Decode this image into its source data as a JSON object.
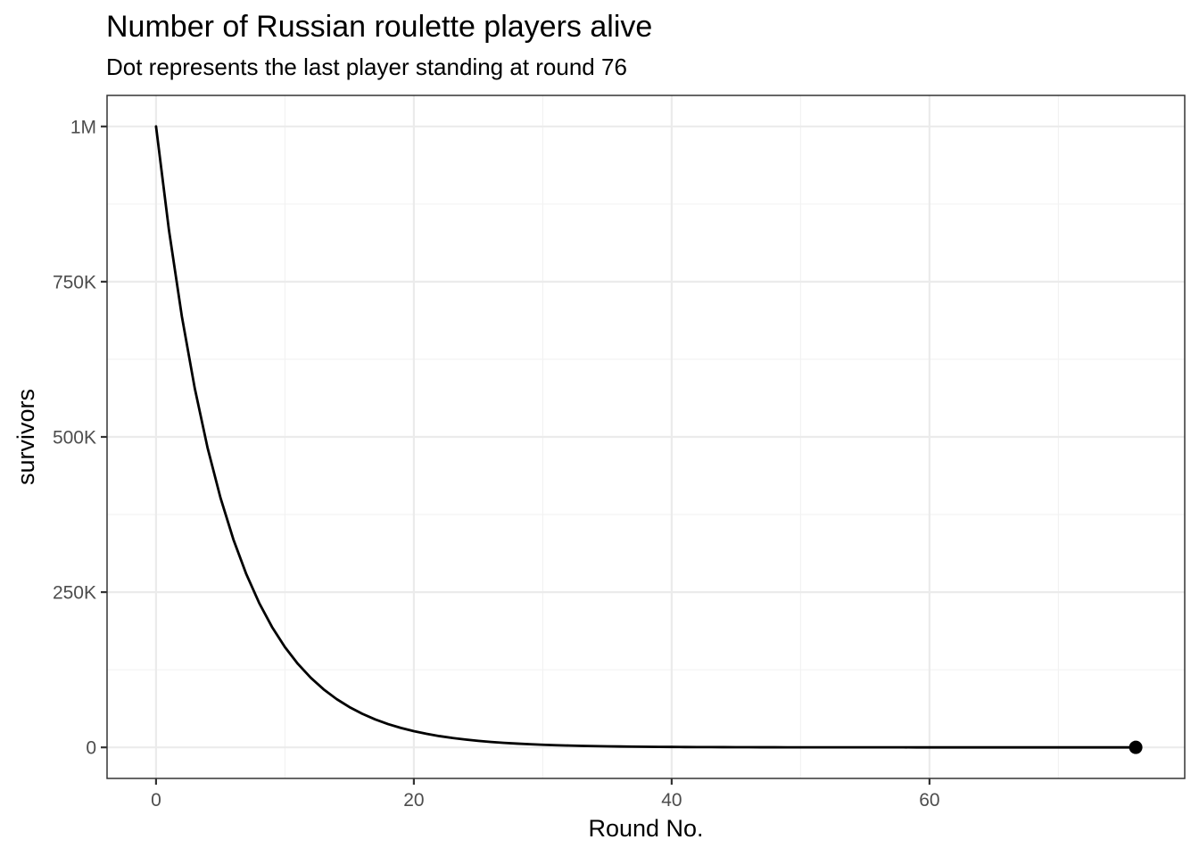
{
  "chart_data": {
    "type": "line",
    "title": "Number of Russian roulette players alive",
    "subtitle": "Dot represents the last player standing at round 76",
    "xlabel": "Round No.",
    "ylabel": "survivors",
    "xlim": [
      -3.8,
      79.8
    ],
    "ylim": [
      -50000,
      1050000
    ],
    "x_ticks": [
      0,
      20,
      40,
      60
    ],
    "x_tick_labels": [
      "0",
      "20",
      "40",
      "60"
    ],
    "x_minor_ticks": [
      10,
      30,
      50,
      70
    ],
    "y_ticks": [
      0,
      250000,
      500000,
      750000,
      1000000
    ],
    "y_tick_labels": [
      "0",
      "250K",
      "500K",
      "750K",
      "1M"
    ],
    "y_minor_ticks": [
      125000,
      375000,
      625000,
      875000
    ],
    "grid": true,
    "legend": "none",
    "series": [
      {
        "x": [
          0,
          1,
          2,
          3,
          4,
          5,
          6,
          7,
          8,
          9,
          10,
          11,
          12,
          13,
          14,
          15,
          16,
          17,
          18,
          19,
          20,
          21,
          22,
          23,
          24,
          25,
          26,
          27,
          28,
          29,
          30,
          31,
          32,
          33,
          34,
          35,
          36,
          37,
          38,
          39,
          40,
          41,
          42,
          43,
          44,
          45,
          46,
          47,
          48,
          49,
          50,
          51,
          52,
          53,
          54,
          55,
          56,
          57,
          58,
          59,
          60,
          61,
          62,
          63,
          64,
          65,
          66,
          67,
          68,
          69,
          70,
          71,
          72,
          73,
          74,
          75,
          76
        ],
        "values": [
          1000000,
          833333,
          694444,
          578704,
          482253,
          401878,
          334898,
          279082,
          232568,
          193807,
          161506,
          134588,
          112157,
          93464,
          77887,
          64905,
          54088,
          45073,
          37561,
          31301,
          26084,
          21737,
          18114,
          15095,
          12579,
          10483,
          8736,
          7280,
          6066,
          5055,
          4213,
          3511,
          2926,
          2438,
          2032,
          1693,
          1411,
          1176,
          980,
          816,
          680,
          567,
          473,
          394,
          328,
          273,
          228,
          190,
          158,
          132,
          110,
          92,
          76,
          64,
          53,
          44,
          37,
          31,
          26,
          21,
          18,
          15,
          12,
          10,
          8,
          7,
          6,
          5,
          4,
          3,
          3,
          2,
          2,
          2,
          1,
          1,
          1
        ]
      }
    ],
    "highlight_point": {
      "x": 76,
      "y": 1
    }
  }
}
